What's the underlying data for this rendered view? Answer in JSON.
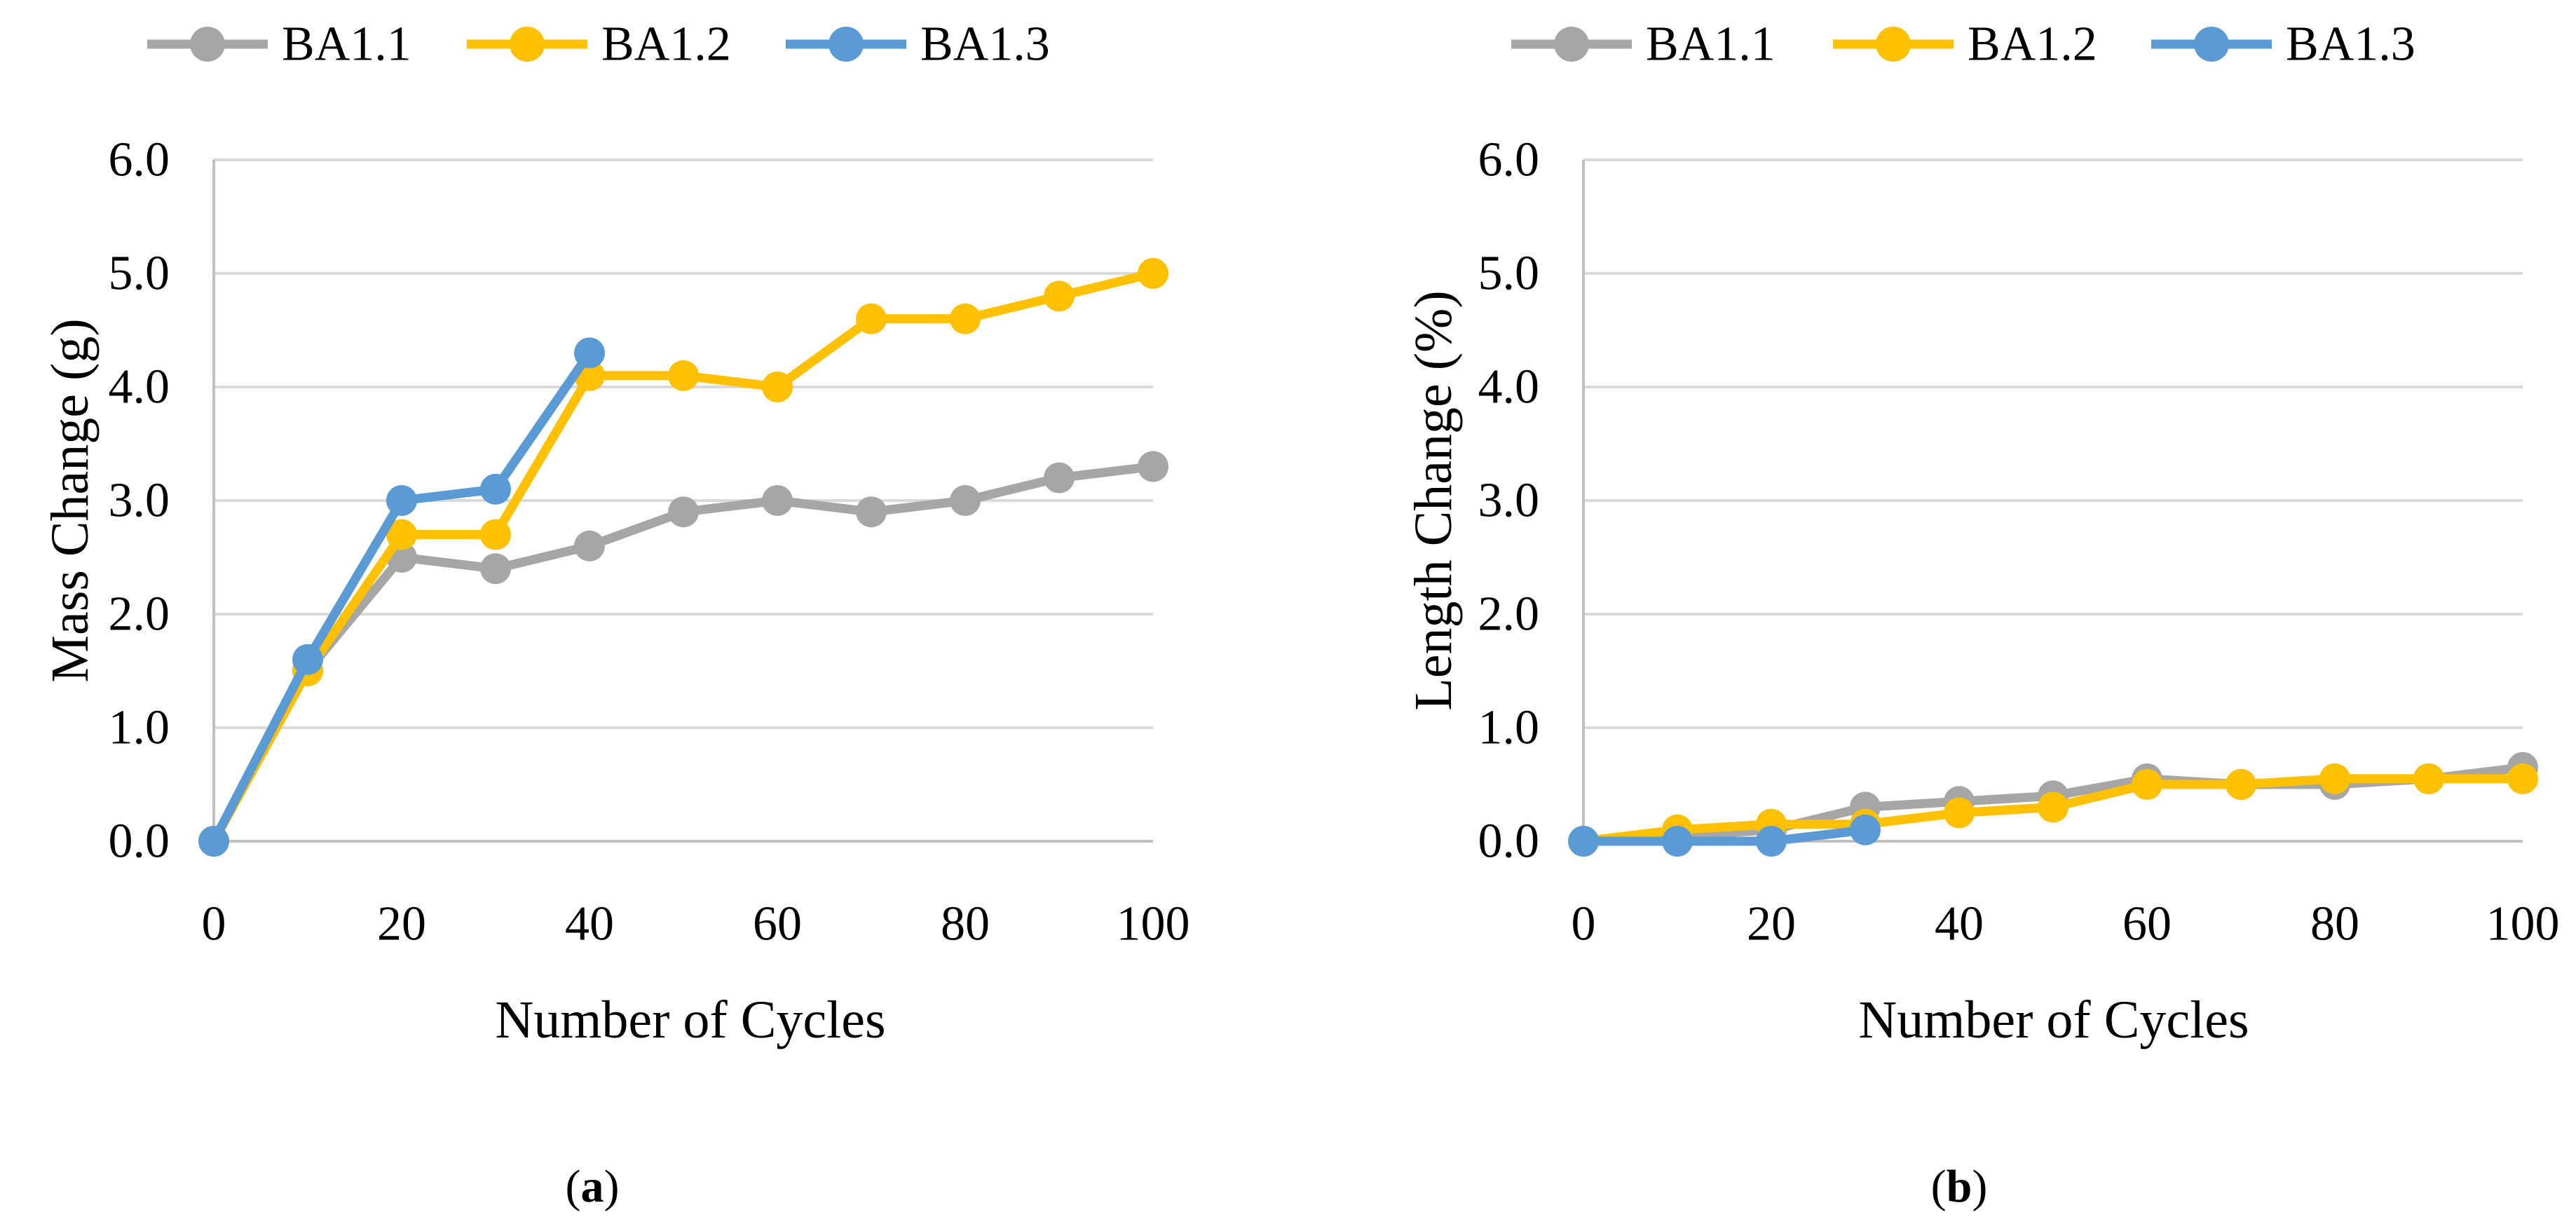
{
  "figure": {
    "background": "#FFFFFF",
    "styles": {
      "gridline_color": "#D9D9D9",
      "axis_color": "#BFBFBF",
      "text_color": "#000000"
    }
  },
  "chart_data": [
    {
      "type": "line",
      "panel": "a",
      "caption": {
        "open": "(",
        "letter": "a",
        "close": ")"
      },
      "title": "",
      "xlabel": "Number of Cycles",
      "ylabel": "Mass Change (g)",
      "x": [
        0,
        10,
        20,
        30,
        40,
        50,
        60,
        70,
        80,
        90,
        100
      ],
      "xticks": [
        0,
        20,
        40,
        60,
        80,
        100
      ],
      "xtick_labels": [
        "0",
        "20",
        "40",
        "60",
        "80",
        "100"
      ],
      "xlim": [
        0,
        100
      ],
      "ylim": [
        0.0,
        6.0
      ],
      "ytick_labels": [
        "0.0",
        "1.0",
        "2.0",
        "3.0",
        "4.0",
        "5.0",
        "6.0"
      ],
      "grid": true,
      "legend_position": "top",
      "series": [
        {
          "name": "BA1.1",
          "color": "#A6A6A6",
          "values": [
            0.0,
            1.5,
            2.5,
            2.4,
            2.6,
            2.9,
            3.0,
            2.9,
            3.0,
            3.2,
            3.3
          ]
        },
        {
          "name": "BA1.2",
          "color": "#FFC000",
          "values": [
            0.0,
            1.5,
            2.7,
            2.7,
            4.1,
            4.1,
            4.0,
            4.6,
            4.6,
            4.8,
            5.0
          ]
        },
        {
          "name": "BA1.3",
          "color": "#5B9BD5",
          "values": [
            0.0,
            1.6,
            3.0,
            3.1,
            4.3
          ]
        }
      ]
    },
    {
      "type": "line",
      "panel": "b",
      "caption": {
        "open": "(",
        "letter": "b",
        "close": ")"
      },
      "title": "",
      "xlabel": "Number of Cycles",
      "ylabel": "Length Change (%)",
      "x": [
        0,
        10,
        20,
        30,
        40,
        50,
        60,
        70,
        80,
        90,
        100
      ],
      "xticks": [
        0,
        20,
        40,
        60,
        80,
        100
      ],
      "xtick_labels": [
        "0",
        "20",
        "40",
        "60",
        "80",
        "100"
      ],
      "xlim": [
        0,
        100
      ],
      "ylim": [
        0.0,
        6.0
      ],
      "ytick_labels": [
        "0.0",
        "1.0",
        "2.0",
        "3.0",
        "4.0",
        "5.0",
        "6.0"
      ],
      "grid": true,
      "legend_position": "top",
      "series": [
        {
          "name": "BA1.1",
          "color": "#A6A6A6",
          "values": [
            0.0,
            0.05,
            0.1,
            0.3,
            0.35,
            0.4,
            0.55,
            0.5,
            0.5,
            0.55,
            0.65
          ]
        },
        {
          "name": "BA1.2",
          "color": "#FFC000",
          "values": [
            0.0,
            0.1,
            0.15,
            0.15,
            0.25,
            0.3,
            0.5,
            0.5,
            0.55,
            0.55,
            0.55
          ]
        },
        {
          "name": "BA1.3",
          "color": "#5B9BD5",
          "values": [
            0.0,
            0.0,
            0.0,
            0.1
          ]
        }
      ]
    }
  ]
}
